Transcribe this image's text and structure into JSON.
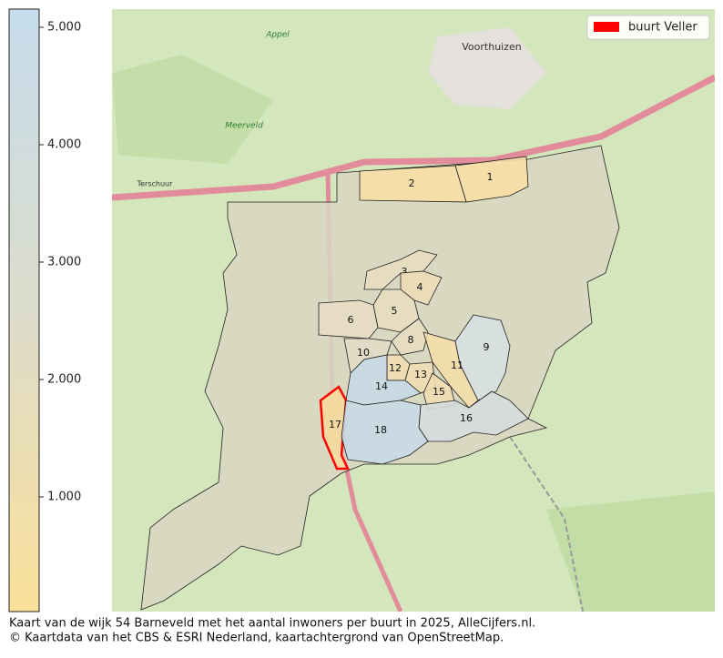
{
  "map": {
    "colorbar": {
      "range": [
        23,
        5155
      ],
      "colors": [
        "#fbe09a",
        "#dcdccb",
        "#c6dcec"
      ],
      "ticks": [
        {
          "value": 1000,
          "label": "1.000"
        },
        {
          "value": 2000,
          "label": "2.000"
        },
        {
          "value": 3000,
          "label": "3.000"
        },
        {
          "value": 4000,
          "label": "4.000"
        },
        {
          "value": 5000,
          "label": "5.000"
        }
      ]
    },
    "legend": {
      "label": "buurt Veller",
      "color": "#ff0000"
    },
    "regions": [
      {
        "label": "1",
        "color": "#f7dea5"
      },
      {
        "label": "2",
        "color": "#f7dea5"
      },
      {
        "label": "3",
        "color": "#e7ddc0"
      },
      {
        "label": "4",
        "color": "#ecdcb6"
      },
      {
        "label": "5",
        "color": "#e7ddc0"
      },
      {
        "label": "6",
        "color": "#e5dcc3"
      },
      {
        "label": "8",
        "color": "#e7ddc0"
      },
      {
        "label": "9",
        "color": "#d6dfe2"
      },
      {
        "label": "10",
        "color": "#e2dcc6"
      },
      {
        "label": "11",
        "color": "#f3dcaa"
      },
      {
        "label": "12",
        "color": "#efdcb3"
      },
      {
        "label": "13",
        "color": "#efdcb3"
      },
      {
        "label": "14",
        "color": "#c7d9e6"
      },
      {
        "label": "15",
        "color": "#efdcb3"
      },
      {
        "label": "16",
        "color": "#d5dcdc"
      },
      {
        "label": "17",
        "color": "#f6d99c"
      },
      {
        "label": "18",
        "color": "#c7d9e6"
      }
    ],
    "place_names": [
      "Voorthuizen",
      "Terschuur",
      "Appel",
      "Meerveld"
    ],
    "caption": [
      "Kaart van de wijk 54 Barneveld met het aantal inwoners per buurt in 2025, AlleCijfers.nl.",
      "© Kaartdata van het CBS & ESRI Nederland, kaartachtergrond van OpenStreetMap."
    ]
  }
}
